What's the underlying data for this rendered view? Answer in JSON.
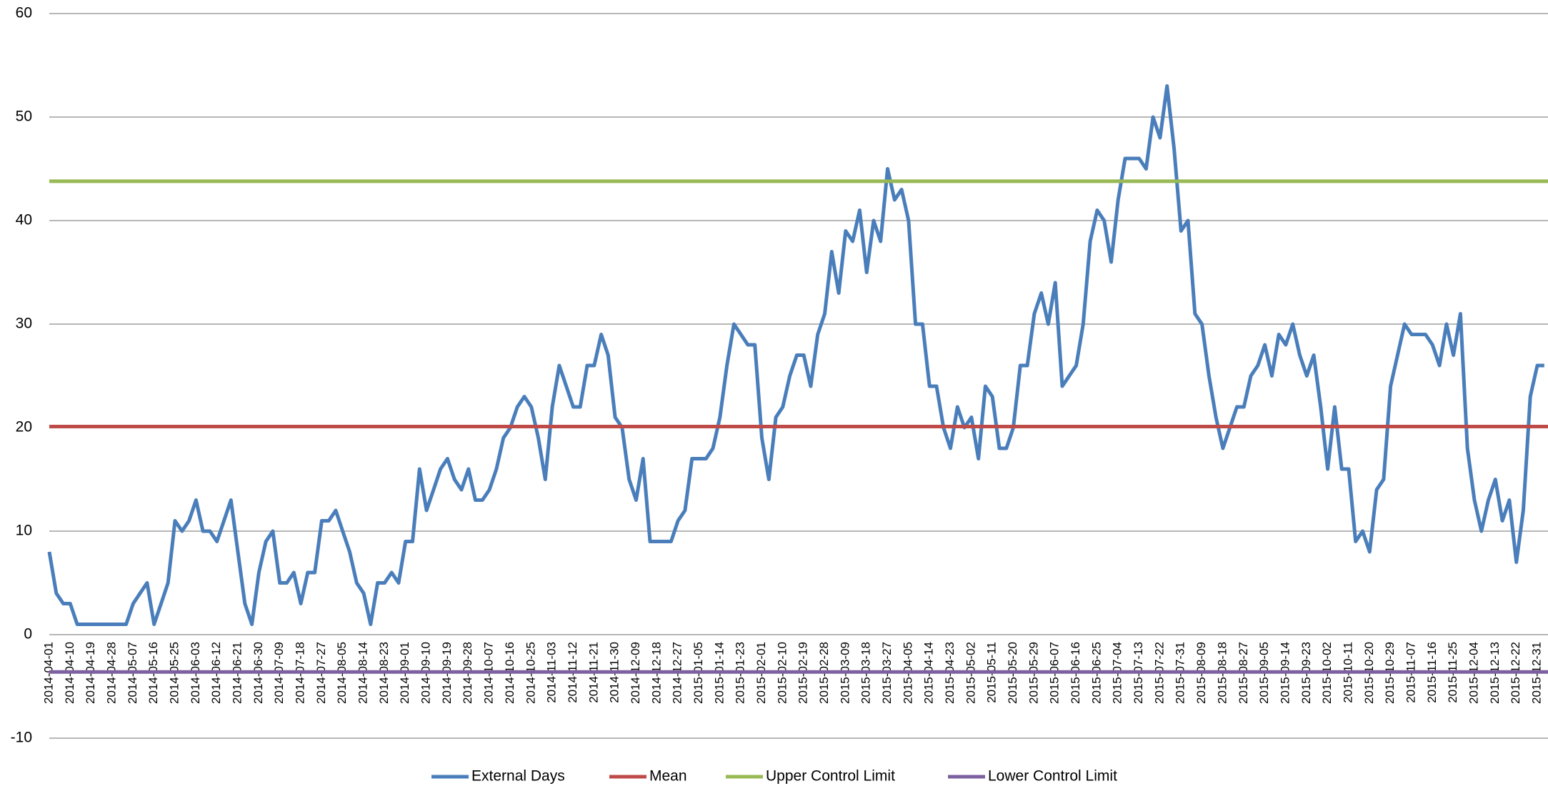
{
  "chart_data": {
    "type": "line",
    "categories": [
      "2014-04-01",
      null,
      null,
      "2014-04-10",
      null,
      null,
      "2014-04-19",
      null,
      null,
      "2014-04-28",
      null,
      null,
      "2014-05-07",
      null,
      null,
      "2014-05-16",
      null,
      null,
      "2014-05-25",
      null,
      null,
      "2014-06-03",
      null,
      null,
      "2014-06-12",
      null,
      null,
      "2014-06-21",
      null,
      null,
      "2014-06-30",
      null,
      null,
      "2014-07-09",
      null,
      null,
      "2014-07-18",
      null,
      null,
      "2014-07-27",
      null,
      null,
      "2014-08-05",
      null,
      null,
      "2014-08-14",
      null,
      null,
      "2014-08-23",
      null,
      null,
      "2014-09-01",
      null,
      null,
      "2014-09-10",
      null,
      null,
      "2014-09-19",
      null,
      null,
      "2014-09-28",
      null,
      null,
      "2014-10-07",
      null,
      null,
      "2014-10-16",
      null,
      null,
      "2014-10-25",
      null,
      null,
      "2014-11-03",
      null,
      null,
      "2014-11-12",
      null,
      null,
      "2014-11-21",
      null,
      null,
      "2014-11-30",
      null,
      null,
      "2014-12-09",
      null,
      null,
      "2014-12-18",
      null,
      null,
      "2014-12-27",
      null,
      null,
      "2015-01-05",
      null,
      null,
      "2015-01-14",
      null,
      null,
      "2015-01-23",
      null,
      null,
      "2015-02-01",
      null,
      null,
      "2015-02-10",
      null,
      null,
      "2015-02-19",
      null,
      null,
      "2015-02-28",
      null,
      null,
      "2015-03-09",
      null,
      null,
      "2015-03-18",
      null,
      null,
      "2015-03-27",
      null,
      null,
      "2015-04-05",
      null,
      null,
      "2015-04-14",
      null,
      null,
      "2015-04-23",
      null,
      null,
      "2015-05-02",
      null,
      null,
      "2015-05-11",
      null,
      null,
      "2015-05-20",
      null,
      null,
      "2015-05-29",
      null,
      null,
      "2015-06-07",
      null,
      null,
      "2015-06-16",
      null,
      null,
      "2015-06-25",
      null,
      null,
      "2015-07-04",
      null,
      null,
      "2015-07-13",
      null,
      null,
      "2015-07-22",
      null,
      null,
      "2015-07-31",
      null,
      null,
      "2015-08-09",
      null,
      null,
      "2015-08-18",
      null,
      null,
      "2015-08-27",
      null,
      null,
      "2015-09-05",
      null,
      null,
      "2015-09-14",
      null,
      null,
      "2015-09-23",
      null,
      null,
      "2015-10-02",
      null,
      null,
      "2015-10-11",
      null,
      null,
      "2015-10-20",
      null,
      null,
      "2015-10-29",
      null,
      null,
      "2015-11-07",
      null,
      null,
      "2015-11-16",
      null,
      null,
      "2015-11-25",
      null,
      null,
      "2015-12-04",
      null,
      null,
      "2015-12-13",
      null,
      null,
      "2015-12-22",
      null,
      null,
      "2015-12-31",
      null
    ],
    "series": [
      {
        "name": "External Days",
        "color": "#4a7ebb",
        "values": [
          8,
          4,
          3,
          3,
          1,
          1,
          1,
          1,
          1,
          1,
          1,
          1,
          3,
          4,
          5,
          1,
          3,
          5,
          11,
          10,
          11,
          13,
          10,
          10,
          9,
          11,
          13,
          8,
          3,
          1,
          6,
          9,
          10,
          5,
          5,
          6,
          3,
          6,
          6,
          11,
          11,
          12,
          10,
          8,
          5,
          4,
          1,
          5,
          5,
          6,
          5,
          9,
          9,
          16,
          12,
          14,
          16,
          17,
          15,
          14,
          16,
          13,
          13,
          14,
          16,
          19,
          20,
          22,
          23,
          22,
          19,
          15,
          22,
          26,
          24,
          22,
          22,
          26,
          26,
          29,
          27,
          21,
          20,
          15,
          13,
          17,
          9,
          9,
          9,
          9,
          11,
          12,
          17,
          17,
          17,
          18,
          21,
          26,
          30,
          29,
          28,
          28,
          19,
          15,
          21,
          22,
          25,
          27,
          27,
          24,
          29,
          31,
          37,
          33,
          39,
          38,
          41,
          35,
          40,
          38,
          45,
          42,
          43,
          40,
          30,
          30,
          24,
          24,
          20,
          18,
          22,
          20,
          21,
          17,
          24,
          23,
          18,
          18,
          20,
          26,
          26,
          31,
          33,
          30,
          34,
          24,
          25,
          26,
          30,
          38,
          41,
          40,
          36,
          42,
          46,
          46,
          46,
          45,
          50,
          48,
          53,
          47,
          39,
          40,
          31,
          30,
          25,
          21,
          18,
          20,
          22,
          22,
          25,
          26,
          28,
          25,
          29,
          28,
          30,
          27,
          25,
          27,
          22,
          16,
          22,
          16,
          16,
          9,
          10,
          8,
          14,
          15,
          24,
          27,
          30,
          29,
          29,
          29,
          28,
          26,
          30,
          27,
          31,
          18,
          13,
          10,
          13,
          15,
          11,
          13,
          7,
          12,
          23,
          26,
          26
        ]
      },
      {
        "name": "Mean",
        "color": "#be4b48",
        "value": 20.1
      },
      {
        "name": "Upper Control Limit",
        "color": "#98b954",
        "value": 43.8
      },
      {
        "name": "Lower Control Limit",
        "color": "#7d60a0",
        "value": -3.6
      }
    ],
    "ylim": [
      -10,
      60
    ],
    "yticks": [
      -10,
      0,
      10,
      20,
      30,
      40,
      50,
      60
    ],
    "grid": true,
    "legend": "bottom"
  }
}
